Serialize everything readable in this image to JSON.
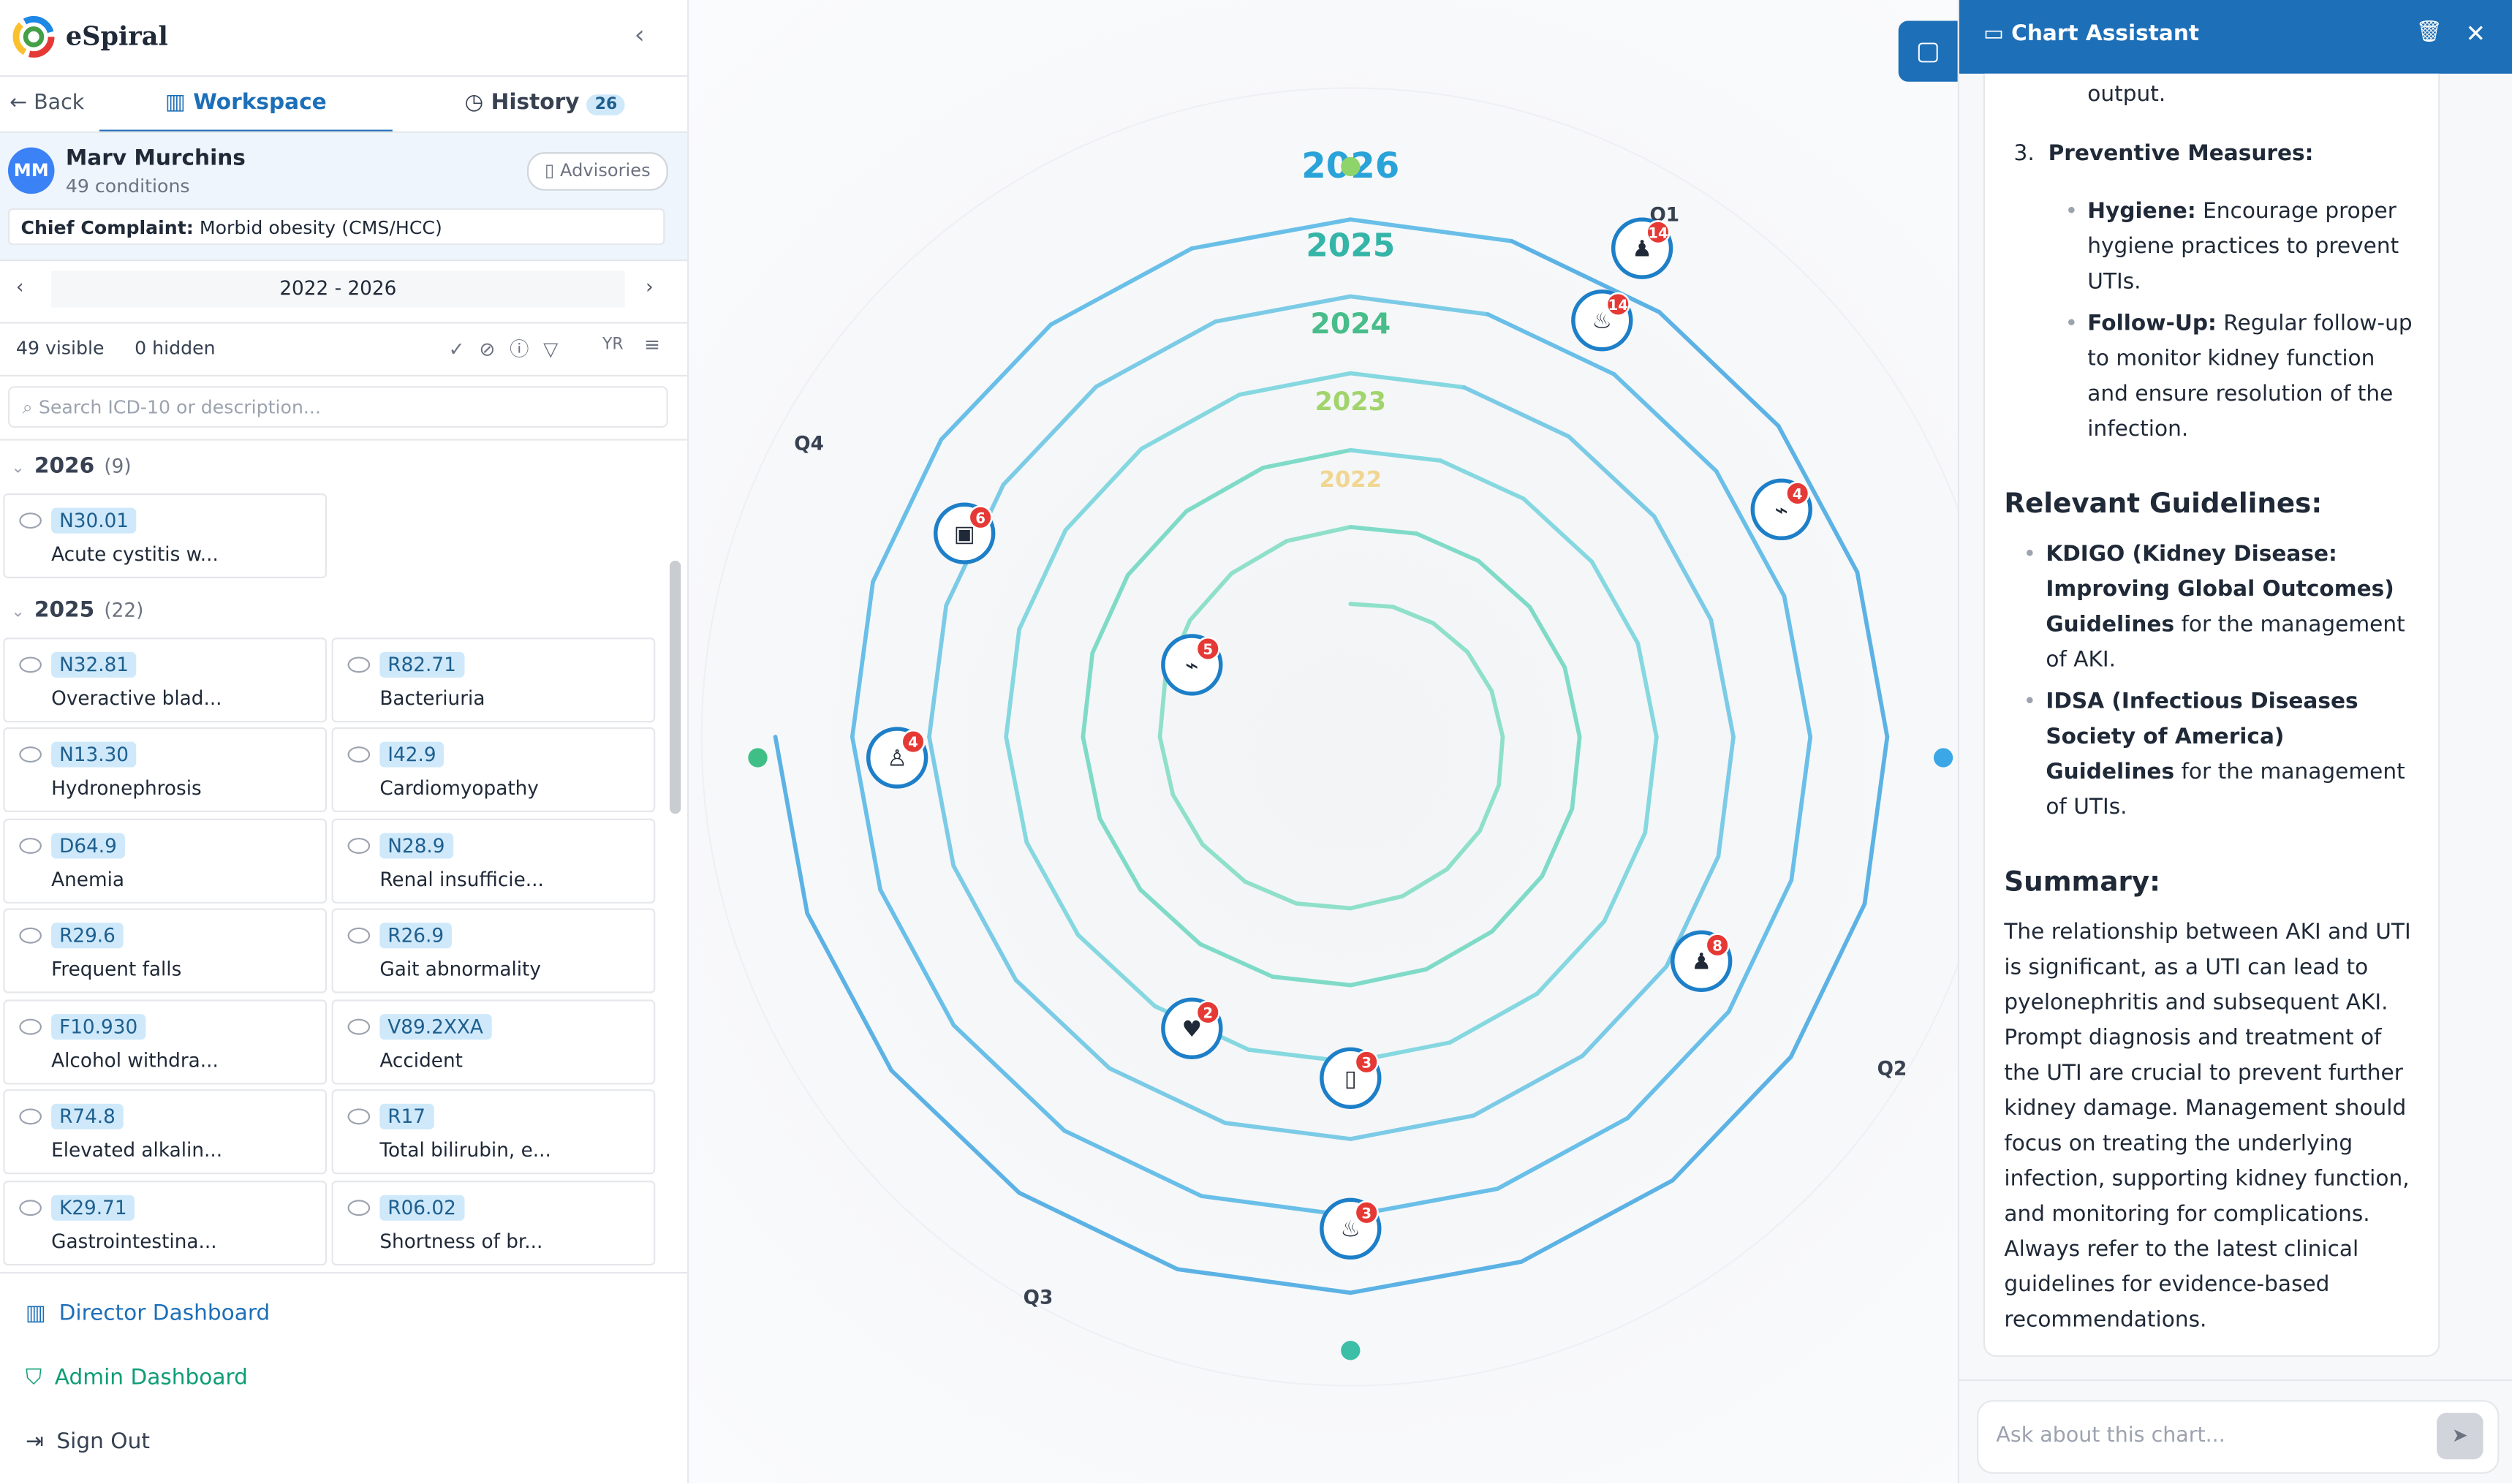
{
  "sidebar": {
    "brand": "eSpiral",
    "back": "Back",
    "tabs": [
      {
        "label": "Workspace"
      },
      {
        "label": "History",
        "badge": "26"
      }
    ],
    "patient": {
      "initials": "MM",
      "name": "Marv Murchins",
      "conditions": "49 conditions",
      "advisories": "Advisories"
    },
    "complaint": {
      "label": "Chief Complaint:",
      "value": "Morbid obesity (CMS/HCC)"
    },
    "range": "2022 - 2026",
    "visible": "49 visible",
    "hidden": "0 hidden",
    "yr": "YR",
    "search": "Search ICD-10 or description...",
    "groups": [
      {
        "year": "2026",
        "count": "(9)",
        "items": [
          {
            "code": "N30.01",
            "desc": "Acute cystitis w..."
          }
        ]
      },
      {
        "year": "2025",
        "count": "(22)",
        "items": [
          {
            "code": "N32.81",
            "desc": "Overactive blad..."
          },
          {
            "code": "R82.71",
            "desc": "Bacteriuria"
          },
          {
            "code": "N13.30",
            "desc": "Hydronephrosis"
          },
          {
            "code": "I42.9",
            "desc": "Cardiomyopathy"
          },
          {
            "code": "D64.9",
            "desc": "Anemia"
          },
          {
            "code": "N28.9",
            "desc": "Renal insufficie..."
          },
          {
            "code": "R29.6",
            "desc": "Frequent falls"
          },
          {
            "code": "R26.9",
            "desc": "Gait abnormality"
          },
          {
            "code": "F10.930",
            "desc": "Alcohol withdra..."
          },
          {
            "code": "V89.2XXA",
            "desc": "Accident"
          },
          {
            "code": "R74.8",
            "desc": "Elevated alkalin..."
          },
          {
            "code": "R17",
            "desc": "Total bilirubin, e..."
          },
          {
            "code": "K29.71",
            "desc": "Gastrointestina..."
          },
          {
            "code": "R06.02",
            "desc": "Shortness of br..."
          }
        ]
      }
    ],
    "nav": [
      "Director Dashboard",
      "Admin Dashboard",
      "Sign Out"
    ]
  },
  "spiral": {
    "years": [
      "2026",
      "2025",
      "2024",
      "2023",
      "2022"
    ],
    "quarters": [
      "Q1",
      "Q2",
      "Q3",
      "Q4"
    ],
    "markers": [
      {
        "badge": "14"
      },
      {
        "badge": "14"
      },
      {
        "badge": "4"
      },
      {
        "badge": "6"
      },
      {
        "badge": "5"
      },
      {
        "badge": "4"
      },
      {
        "badge": "8"
      },
      {
        "badge": "2"
      },
      {
        "badge": "3"
      },
      {
        "badge": "3"
      }
    ]
  },
  "chat": {
    "title": "Chart Assistant",
    "lead": "output.",
    "step": {
      "num": "3.",
      "title": "Preventive Measures:",
      "items": [
        {
          "label": "Hygiene:",
          "text": "Encourage proper hygiene practices to prevent UTIs."
        },
        {
          "label": "Follow-Up:",
          "text": "Regular follow-up to monitor kidney function and ensure resolution of the infection."
        }
      ]
    },
    "guidelines": {
      "heading": "Relevant Guidelines:",
      "items": [
        {
          "bold": "KDIGO (Kidney Disease: Improving Global Outcomes) Guidelines",
          "text": "for the management of AKI."
        },
        {
          "bold": "IDSA (Infectious Diseases Society of America) Guidelines",
          "text": "for the management of UTIs."
        }
      ]
    },
    "summary": {
      "heading": "Summary:",
      "text": "The relationship between AKI and UTI is significant, as a UTI can lead to pyelonephritis and subsequent AKI. Prompt diagnosis and treatment of the UTI are crucial to prevent further kidney damage. Management should focus on treating the underlying infection, supporting kidney function, and monitoring for complications. Always refer to the latest clinical guidelines for evidence-based recommendations."
    },
    "input": "Ask about this chart..."
  }
}
